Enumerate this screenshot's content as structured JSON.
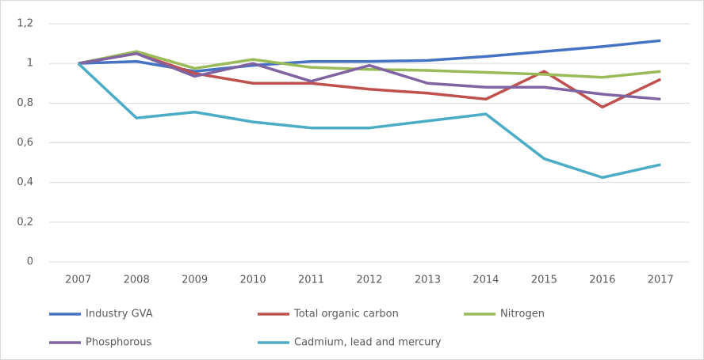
{
  "chart_data": {
    "type": "line",
    "categories": [
      "2007",
      "2008",
      "2009",
      "2010",
      "2011",
      "2012",
      "2013",
      "2014",
      "2015",
      "2016",
      "2017"
    ],
    "series": [
      {
        "name": "Industry GVA",
        "color": "#4472c4",
        "values": [
          1.0,
          1.01,
          0.96,
          0.99,
          1.01,
          1.01,
          1.015,
          1.035,
          1.06,
          1.085,
          1.115
        ]
      },
      {
        "name": "Total organic carbon",
        "color": "#c0504d",
        "values": [
          1.0,
          1.05,
          0.95,
          0.9,
          0.9,
          0.87,
          0.85,
          0.82,
          0.96,
          0.78,
          0.92
        ]
      },
      {
        "name": "Nitrogen",
        "color": "#9bbb59",
        "values": [
          1.0,
          1.06,
          0.975,
          1.02,
          0.98,
          0.97,
          0.965,
          0.955,
          0.945,
          0.93,
          0.96
        ]
      },
      {
        "name": "Phosphorous",
        "color": "#8064a2",
        "values": [
          1.0,
          1.05,
          0.935,
          1.0,
          0.91,
          0.99,
          0.9,
          0.88,
          0.88,
          0.845,
          0.82
        ]
      },
      {
        "name": "Cadmium, lead and mercury",
        "color": "#4bacc6",
        "values": [
          1.0,
          0.725,
          0.755,
          0.705,
          0.675,
          0.675,
          0.71,
          0.745,
          0.52,
          0.425,
          0.49
        ]
      }
    ],
    "ylim": [
      0,
      1.2
    ],
    "yticks": [
      0,
      {
        "value": 0.2,
        "label": "0,2"
      },
      {
        "value": 0.4,
        "label": "0,4"
      },
      {
        "value": 0.6,
        "label": "0,6"
      },
      {
        "value": 0.8,
        "label": "0,8"
      },
      1,
      {
        "value": 1.2,
        "label": "1,2"
      }
    ],
    "grid": true,
    "legend": "bottom"
  }
}
